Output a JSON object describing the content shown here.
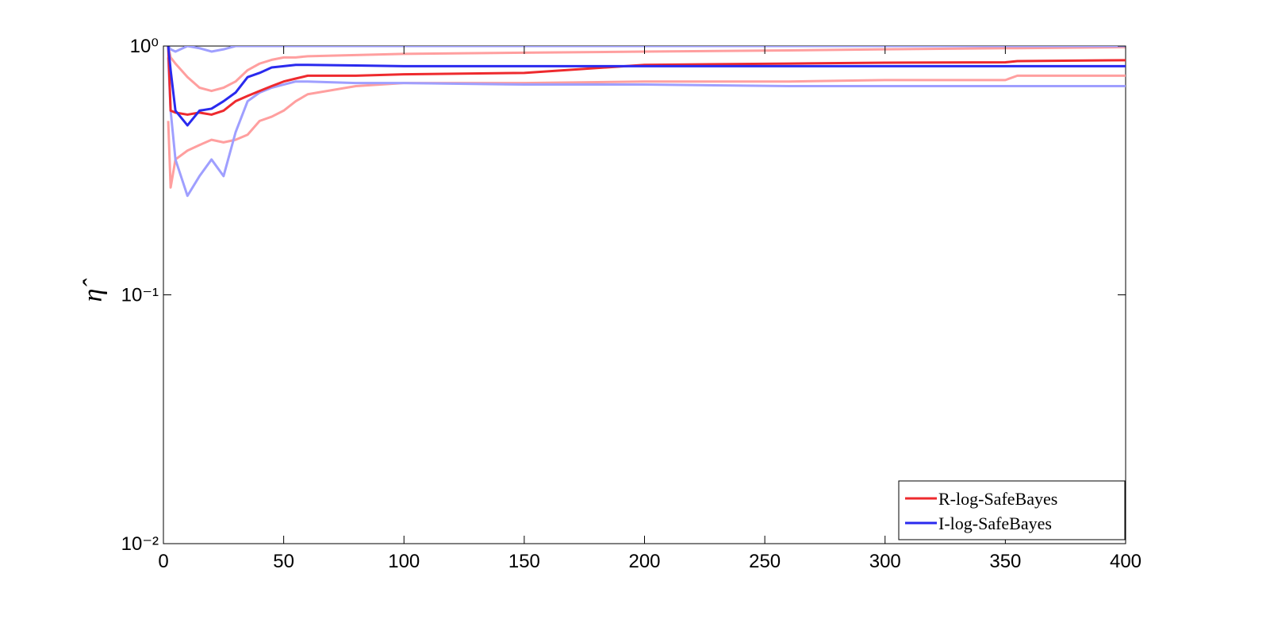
{
  "chart_data": {
    "type": "line",
    "ylabel": "η̂",
    "log_y": true,
    "grid": false,
    "legend": "lower right",
    "x": [
      2,
      3,
      5,
      10,
      15,
      20,
      25,
      30,
      35,
      40,
      45,
      50,
      55,
      60,
      80,
      100,
      150,
      200,
      260,
      300,
      350,
      355,
      400
    ],
    "xlim": [
      0,
      400
    ],
    "xticks": [
      0,
      50,
      100,
      150,
      200,
      250,
      300,
      350,
      400
    ],
    "ylim": [
      0.01,
      1
    ],
    "yticks": [
      {
        "value": 1,
        "label": "10⁰"
      },
      {
        "value": 0.1,
        "label": "10⁻¹"
      },
      {
        "value": 0.01,
        "label": "10⁻²"
      }
    ],
    "series": [
      {
        "color": "#ff9f9f",
        "values": [
          1.0,
          0.9,
          0.85,
          0.75,
          0.68,
          0.66,
          0.68,
          0.72,
          0.8,
          0.85,
          0.88,
          0.9,
          0.9,
          0.91,
          0.92,
          0.93,
          0.94,
          0.95,
          0.96,
          0.97,
          0.98,
          0.98,
          0.99
        ]
      },
      {
        "color": "#ff9f9f",
        "values": [
          0.5,
          0.27,
          0.35,
          0.38,
          0.4,
          0.42,
          0.41,
          0.42,
          0.44,
          0.5,
          0.52,
          0.55,
          0.6,
          0.64,
          0.69,
          0.71,
          0.71,
          0.72,
          0.72,
          0.73,
          0.73,
          0.76,
          0.76
        ]
      },
      {
        "color": "#9f9fff",
        "values": [
          1.0,
          0.97,
          0.95,
          1.0,
          0.98,
          0.95,
          0.97,
          1.0,
          1.0,
          1.0,
          1.0,
          1.0,
          1.0,
          1.0,
          1.0,
          1.0,
          1.0,
          1.0,
          1.0,
          1.0,
          1.0,
          1.0,
          1.0
        ]
      },
      {
        "color": "#9f9fff",
        "values": [
          0.9,
          0.55,
          0.35,
          0.25,
          0.3,
          0.35,
          0.3,
          0.45,
          0.6,
          0.65,
          0.68,
          0.7,
          0.72,
          0.72,
          0.71,
          0.71,
          0.7,
          0.7,
          0.69,
          0.69,
          0.69,
          0.69,
          0.69
        ]
      },
      {
        "name": "R-log-SafeBayes",
        "color": "#ee2a2e",
        "values": [
          1.0,
          0.55,
          0.54,
          0.53,
          0.54,
          0.53,
          0.55,
          0.6,
          0.63,
          0.66,
          0.69,
          0.72,
          0.74,
          0.76,
          0.76,
          0.77,
          0.78,
          0.84,
          0.85,
          0.857,
          0.86,
          0.87,
          0.877
        ]
      },
      {
        "name": "I-log-SafeBayes",
        "color": "#2a2aee",
        "values": [
          1.0,
          0.8,
          0.55,
          0.48,
          0.55,
          0.56,
          0.6,
          0.65,
          0.75,
          0.78,
          0.82,
          0.83,
          0.84,
          0.84,
          0.835,
          0.83,
          0.83,
          0.83,
          0.83,
          0.83,
          0.83,
          0.83,
          0.83
        ]
      }
    ]
  }
}
